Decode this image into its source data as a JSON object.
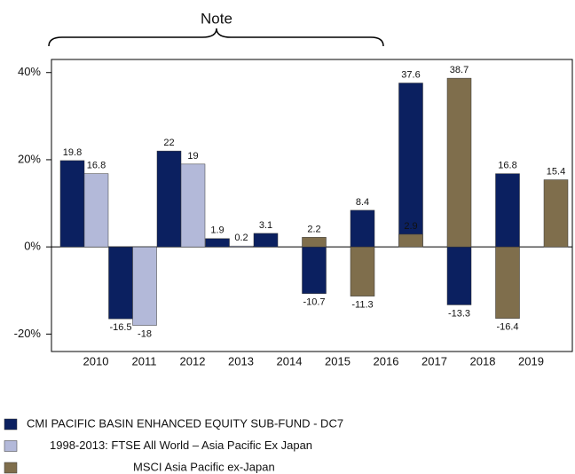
{
  "chart_data": {
    "type": "bar",
    "annotations": [
      "Note"
    ],
    "categories": [
      "2010",
      "2011",
      "2012",
      "2013",
      "2014",
      "2015",
      "2016",
      "2017",
      "2018",
      "2019",
      null
    ],
    "series": [
      {
        "name": "CMI PACIFIC BASIN ENHANCED EQUITY SUB-FUND - DC7",
        "color": "#0b2060",
        "values": [
          19.8,
          -16.5,
          22,
          1.9,
          3.1,
          -10.7,
          8.4,
          37.6,
          -13.3,
          16.8,
          null
        ]
      },
      {
        "name": "1998-2013: FTSE All World – Asia Pacific Ex Japan",
        "color": "#b3b9d9",
        "values": [
          16.8,
          -18,
          19,
          0.2,
          null,
          null,
          null,
          null,
          null,
          null,
          null
        ]
      },
      {
        "name": "MSCI Asia Pacific ex-Japan",
        "color": "#7f6e4c",
        "values": [
          null,
          null,
          null,
          null,
          null,
          2.2,
          -11.3,
          2.9,
          38.7,
          -16.4,
          15.4
        ]
      }
    ],
    "ylim": [
      -24,
      43
    ],
    "yticks": [
      {
        "value": -20,
        "label": "-20%"
      },
      {
        "value": 0,
        "label": "0%"
      },
      {
        "value": 20,
        "label": "20%"
      },
      {
        "value": 40,
        "label": "40%"
      }
    ]
  }
}
